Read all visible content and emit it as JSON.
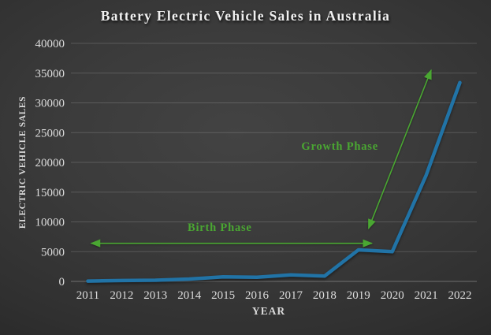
{
  "chart_data": {
    "type": "line",
    "title": "Battery Electric Vehicle Sales in Australia",
    "xlabel": "YEAR",
    "ylabel": "ELECTRIC VEHICLE SALES",
    "categories": [
      "2011",
      "2012",
      "2013",
      "2014",
      "2015",
      "2016",
      "2017",
      "2018",
      "2019",
      "2020",
      "2021",
      "2022"
    ],
    "series": [
      {
        "name": "Battery Electric Vehicle Sales",
        "values": [
          50,
          150,
          200,
          400,
          750,
          700,
          1100,
          900,
          5300,
          5000,
          17800,
          33400
        ],
        "color": "#2173a6"
      }
    ],
    "ylim": [
      0,
      40000
    ],
    "yticks": [
      0,
      5000,
      10000,
      15000,
      20000,
      25000,
      30000,
      35000,
      40000
    ],
    "grid": true,
    "legend": false,
    "annotation_color": "#4aa732",
    "annotations": [
      {
        "label": "Birth Phase",
        "text_at": {
          "year": 2014.9,
          "value": 8500
        },
        "arrow": {
          "from": {
            "year": 2011.1,
            "value": 6400
          },
          "to": {
            "year": 2019.4,
            "value": 6400
          },
          "double_headed": true
        }
      },
      {
        "label": "Growth Phase",
        "text_at": {
          "year": 2018.45,
          "value": 22100
        },
        "arrow": {
          "from": {
            "year": 2019.3,
            "value": 8900
          },
          "to": {
            "year": 2021.15,
            "value": 35500
          },
          "double_headed": true
        }
      }
    ]
  }
}
